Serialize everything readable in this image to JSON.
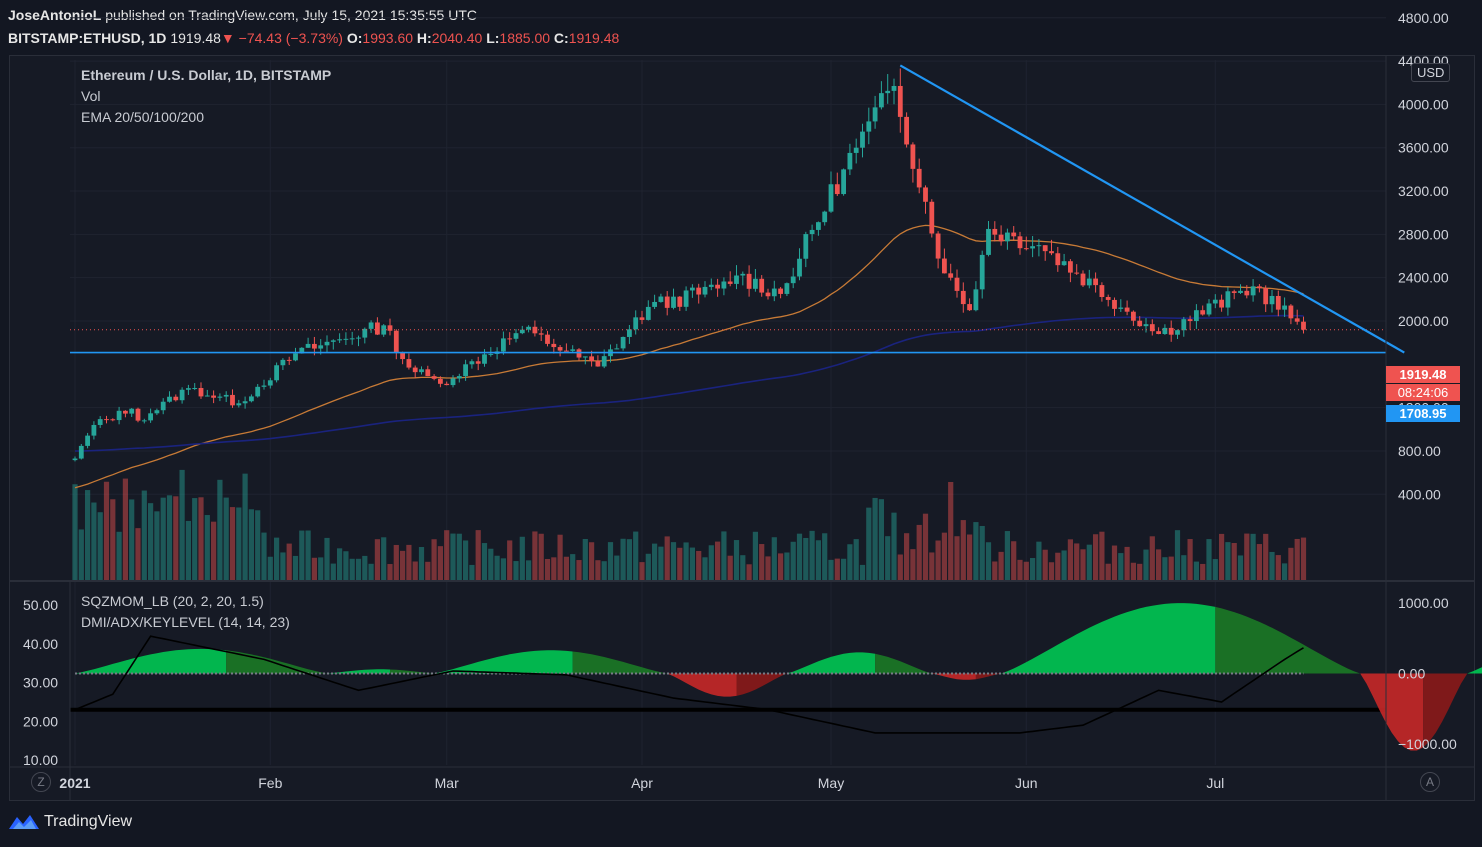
{
  "header": {
    "author": "JoseAntonioL",
    "published": "published on TradingView.com, July 15, 2021 15:35:55 UTC",
    "symbol": "BITSTAMP:ETHUSD, 1D",
    "last": "1919.48",
    "arrow": "▼",
    "change": "−74.43 (−3.73%)",
    "o_label": "O:",
    "o": "1993.60",
    "h_label": "H:",
    "h": "2040.40",
    "l_label": "L:",
    "l": "1885.00",
    "c_label": "C:",
    "c": "1919.48"
  },
  "legend": {
    "title": "Ethereum / U.S. Dollar, 1D, BITSTAMP",
    "vol": "Vol",
    "ema": "EMA 20/50/100/200",
    "sqz": "SQZMOM_LB (20, 2, 20, 1.5)",
    "dmi": "DMI/ADX/KEYLEVEL (14, 14, 23)"
  },
  "price_tags": {
    "last": "1919.48",
    "countdown": "08:24:06",
    "hline": "1708.95"
  },
  "currency_badge": "USD",
  "scale_buttons": {
    "left": "Z",
    "right": "A"
  },
  "brand": "TradingView",
  "colors": {
    "up": "#26a69a",
    "down": "#ef5350",
    "trend": "#2196f3",
    "ema_orange": "#c77a36",
    "ema_navy": "#1a237e"
  },
  "chart_data": [
    {
      "type": "candlestick",
      "title": "Ethereum / U.S. Dollar, 1D, BITSTAMP",
      "ylim": [
        0,
        4800
      ],
      "yticks": [
        "4800.00",
        "4400.00",
        "4000.00",
        "3600.00",
        "3200.00",
        "2800.00",
        "2400.00",
        "2000.00",
        "1200.00",
        "800.00",
        "400.00"
      ],
      "x_ticks": [
        "2021",
        "Feb",
        "Mar",
        "Apr",
        "May",
        "Jun",
        "Jul"
      ],
      "close_anchors": [
        {
          "date": "2021-01-01",
          "close": 730
        },
        {
          "date": "2021-01-04",
          "close": 1040
        },
        {
          "date": "2021-01-10",
          "close": 1190
        },
        {
          "date": "2021-01-11",
          "close": 1080
        },
        {
          "date": "2021-01-19",
          "close": 1380
        },
        {
          "date": "2021-01-27",
          "close": 1240
        },
        {
          "date": "2021-02-05",
          "close": 1700
        },
        {
          "date": "2021-02-19",
          "close": 1960
        },
        {
          "date": "2021-02-23",
          "close": 1570
        },
        {
          "date": "2021-02-28",
          "close": 1420
        },
        {
          "date": "2021-03-13",
          "close": 1920
        },
        {
          "date": "2021-03-25",
          "close": 1580
        },
        {
          "date": "2021-04-02",
          "close": 2130
        },
        {
          "date": "2021-04-13",
          "close": 2300
        },
        {
          "date": "2021-04-16",
          "close": 2420
        },
        {
          "date": "2021-04-23",
          "close": 2250
        },
        {
          "date": "2021-05-03",
          "close": 3400
        },
        {
          "date": "2021-05-11",
          "close": 4170
        },
        {
          "date": "2021-05-19",
          "close": 2440
        },
        {
          "date": "2021-05-23",
          "close": 2100
        },
        {
          "date": "2021-05-26",
          "close": 2850
        },
        {
          "date": "2021-06-03",
          "close": 2700
        },
        {
          "date": "2021-06-22",
          "close": 1880
        },
        {
          "date": "2021-07-07",
          "close": 2320
        },
        {
          "date": "2021-07-14",
          "close": 1993.6
        },
        {
          "date": "2021-07-15",
          "close": 1919.48
        }
      ],
      "last_candle": {
        "open": 1993.6,
        "high": 2040.4,
        "low": 1885.0,
        "close": 1919.48
      },
      "horizontal_line": 1708.95,
      "trendline": [
        {
          "date": "2021-05-12",
          "price": 4360
        },
        {
          "date": "2021-07-31",
          "price": 1708.95
        }
      ],
      "ema_series": [
        "EMA 20/50/100/200"
      ]
    },
    {
      "type": "area",
      "title": "SQZMOM_LB (20, 2, 20, 1.5)",
      "ylim": [
        -1000,
        1000
      ],
      "yticks": [
        "1000.00",
        "0.00",
        "−1000.00"
      ]
    },
    {
      "type": "line",
      "title": "DMI/ADX/KEYLEVEL (14, 14, 23)",
      "ylim": [
        10,
        50
      ],
      "yticks": [
        "50.00",
        "40.00",
        "30.00",
        "20.00",
        "10.00"
      ],
      "key_level": 23
    }
  ]
}
